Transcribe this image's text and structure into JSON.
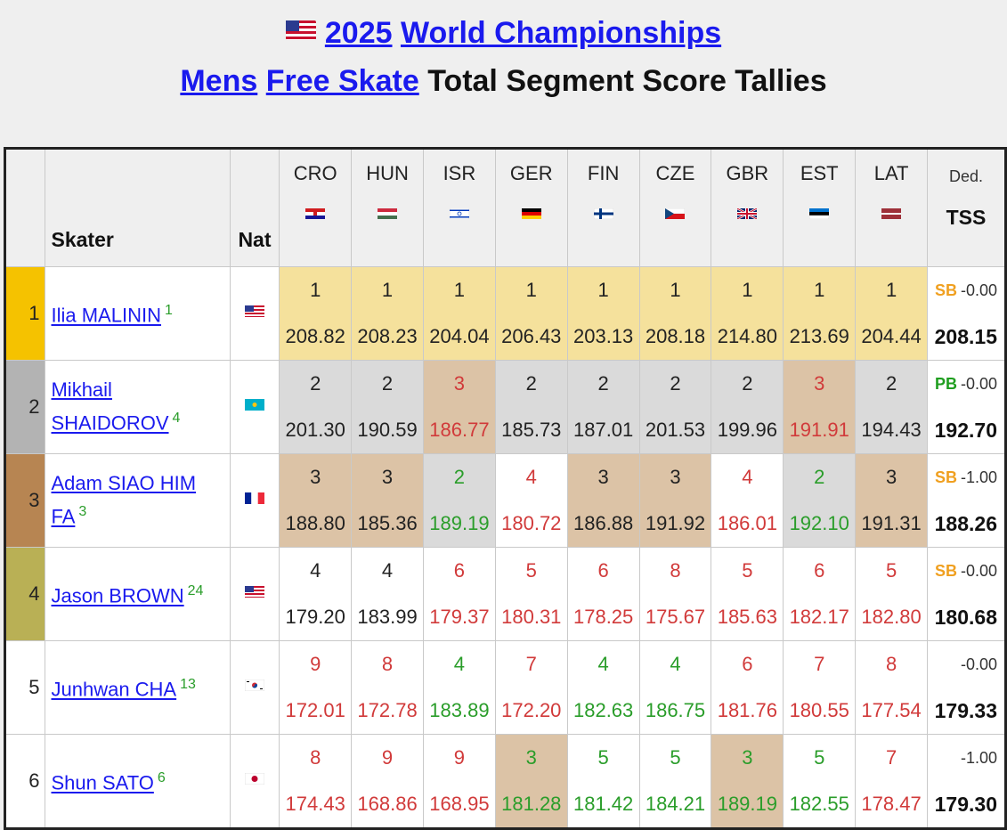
{
  "title": {
    "year": "2025",
    "event": "World Championships",
    "category": "Mens",
    "segment": "Free Skate",
    "suffix": "Total Segment Score Tallies"
  },
  "headers": {
    "skater": "Skater",
    "nat": "Nat",
    "ded": "Ded.",
    "tss": "TSS",
    "judges": [
      "CRO",
      "HUN",
      "ISR",
      "GER",
      "FIN",
      "CZE",
      "GBR",
      "EST",
      "LAT"
    ]
  },
  "rows": [
    {
      "rank": "1",
      "name": "Ilia MALININ",
      "sup": "1",
      "places": [
        "1",
        "1",
        "1",
        "1",
        "1",
        "1",
        "1",
        "1",
        "1"
      ],
      "scores": [
        "208.82",
        "208.23",
        "204.04",
        "206.43",
        "203.13",
        "208.18",
        "214.80",
        "213.69",
        "204.44"
      ],
      "badge": "SB",
      "ded": "-0.00",
      "tss": "208.15"
    },
    {
      "rank": "2",
      "name": "Mikhail SHAIDOROV",
      "sup": "4",
      "places": [
        "2",
        "2",
        "3",
        "2",
        "2",
        "2",
        "2",
        "3",
        "2"
      ],
      "scores": [
        "201.30",
        "190.59",
        "186.77",
        "185.73",
        "187.01",
        "201.53",
        "199.96",
        "191.91",
        "194.43"
      ],
      "badge": "PB",
      "ded": "-0.00",
      "tss": "192.70"
    },
    {
      "rank": "3",
      "name": "Adam SIAO HIM FA",
      "sup": "3",
      "places": [
        "3",
        "3",
        "2",
        "4",
        "3",
        "3",
        "4",
        "2",
        "3"
      ],
      "scores": [
        "188.80",
        "185.36",
        "189.19",
        "180.72",
        "186.88",
        "191.92",
        "186.01",
        "192.10",
        "191.31"
      ],
      "badge": "SB",
      "ded": "-1.00",
      "tss": "188.26"
    },
    {
      "rank": "4",
      "name": "Jason BROWN",
      "sup": "24",
      "places": [
        "4",
        "4",
        "6",
        "5",
        "6",
        "8",
        "5",
        "6",
        "5"
      ],
      "scores": [
        "179.20",
        "183.99",
        "179.37",
        "180.31",
        "178.25",
        "175.67",
        "185.63",
        "182.17",
        "182.80"
      ],
      "badge": "SB",
      "ded": "-0.00",
      "tss": "180.68"
    },
    {
      "rank": "5",
      "name": "Junhwan CHA",
      "sup": "13",
      "places": [
        "9",
        "8",
        "4",
        "7",
        "4",
        "4",
        "6",
        "7",
        "8"
      ],
      "scores": [
        "172.01",
        "172.78",
        "183.89",
        "172.20",
        "182.63",
        "186.75",
        "181.76",
        "180.55",
        "177.54"
      ],
      "badge": "",
      "ded": "-0.00",
      "tss": "179.33"
    },
    {
      "rank": "6",
      "name": "Shun SATO",
      "sup": "6",
      "places": [
        "8",
        "9",
        "9",
        "3",
        "5",
        "5",
        "3",
        "5",
        "7"
      ],
      "scores": [
        "174.43",
        "168.86",
        "168.95",
        "181.28",
        "181.42",
        "184.21",
        "189.19",
        "182.55",
        "178.47"
      ],
      "badge": "",
      "ded": "-1.00",
      "tss": "179.30"
    }
  ]
}
